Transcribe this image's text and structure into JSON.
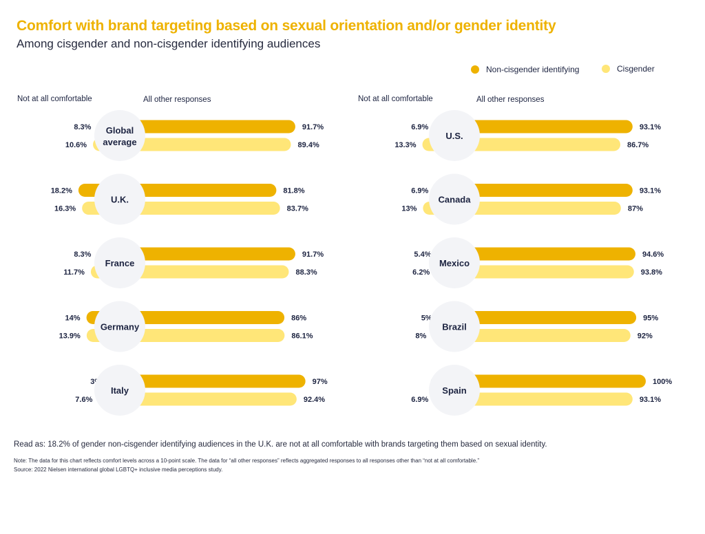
{
  "title": "Comfort with brand targeting based on sexual orientation and/or gender identity",
  "subtitle": "Among cisgender and non-cisgender identifying audiences",
  "legend": {
    "non_cis": "Non-cisgender identifying",
    "cis": "Cisgender"
  },
  "headers": {
    "left_label": "Not at all comfortable",
    "right_label": "All other responses"
  },
  "colors": {
    "non_cis": "#eeb200",
    "cis": "#ffe678",
    "circle": "#f3f4f7",
    "title": "#eeb200",
    "text": "#1c2340"
  },
  "chart_data": {
    "type": "bar",
    "series": [
      {
        "name": "Non-cisgender identifying"
      },
      {
        "name": "Cisgender"
      }
    ],
    "groups": [
      {
        "country": "Global average",
        "non_cis": {
          "not_at_all": 8.3,
          "other": 91.7
        },
        "cis": {
          "not_at_all": 10.6,
          "other": 89.4
        }
      },
      {
        "country": "U.K.",
        "non_cis": {
          "not_at_all": 18.2,
          "other": 81.8
        },
        "cis": {
          "not_at_all": 16.3,
          "other": 83.7
        }
      },
      {
        "country": "France",
        "non_cis": {
          "not_at_all": 8.3,
          "other": 91.7
        },
        "cis": {
          "not_at_all": 11.7,
          "other": 88.3
        }
      },
      {
        "country": "Germany",
        "non_cis": {
          "not_at_all": 14,
          "other": 86
        },
        "cis": {
          "not_at_all": 13.9,
          "other": 86.1
        }
      },
      {
        "country": "Italy",
        "non_cis": {
          "not_at_all": 3,
          "other": 97
        },
        "cis": {
          "not_at_all": 7.6,
          "other": 92.4
        }
      },
      {
        "country": "U.S.",
        "non_cis": {
          "not_at_all": 6.9,
          "other": 93.1
        },
        "cis": {
          "not_at_all": 13.3,
          "other": 86.7
        }
      },
      {
        "country": "Canada",
        "non_cis": {
          "not_at_all": 6.9,
          "other": 93.1
        },
        "cis": {
          "not_at_all": 13,
          "other": 87
        }
      },
      {
        "country": "Mexico",
        "non_cis": {
          "not_at_all": 5.4,
          "other": 94.6
        },
        "cis": {
          "not_at_all": 6.2,
          "other": 93.8
        }
      },
      {
        "country": "Brazil",
        "non_cis": {
          "not_at_all": 5,
          "other": 95
        },
        "cis": {
          "not_at_all": 8,
          "other": 92
        }
      },
      {
        "country": "Spain",
        "non_cis": {
          "not_at_all": 0,
          "other": 100
        },
        "cis": {
          "not_at_all": 6.9,
          "other": 93.1
        }
      }
    ]
  },
  "footer": {
    "read_as": "Read as: 18.2% of gender non-cisgender identifying audiences in the U.K. are not at all comfortable with brands targeting them based on sexual identity.",
    "note": "Note: The data for this chart reflects comfort levels across a 10-point scale. The data for “all other responses” reflects aggregated responses to all responses other than “not at all comfortable.”",
    "source": "Source: 2022 Nielsen international global LGBTQ+ inclusive media perceptions study."
  }
}
